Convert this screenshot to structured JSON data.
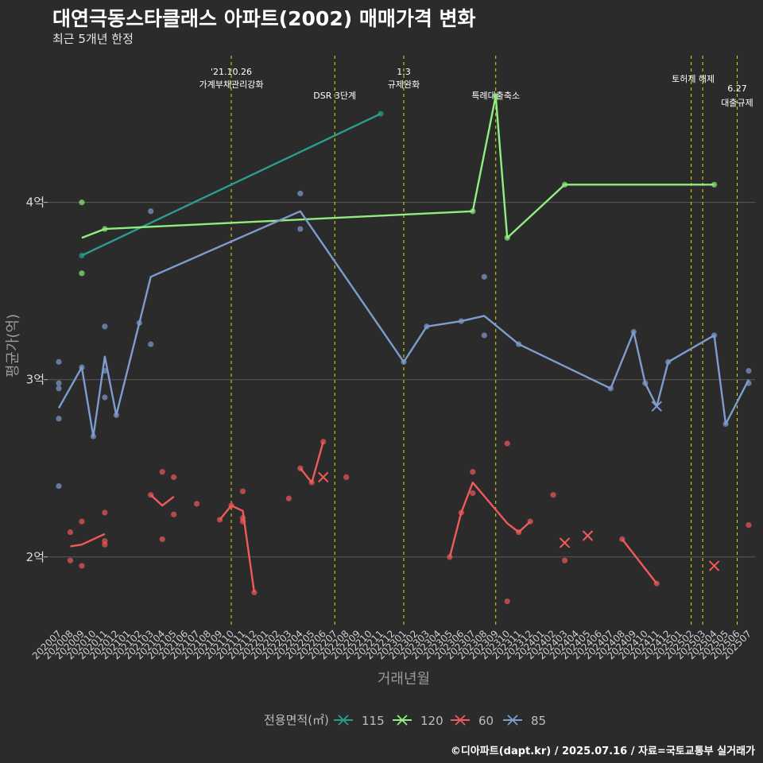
{
  "title": "대연극동스타클래스 아파트(2002) 매매가격 변화",
  "subtitle": "최근 5개년 한정",
  "caption": "©디아파트(dapt.kr) / 2025.07.16 / 자료=국토교통부 실거래가",
  "colors": {
    "background": "#2b2b2b",
    "grid": "#5a5a5a",
    "event_line": "#e0e000",
    "s115": "#2a9d8f",
    "s120": "#90ee7e",
    "s60": "#f05a5a",
    "s85": "#7f9ccf"
  },
  "chart_data": {
    "type": "line",
    "xlabel": "거래년월",
    "ylabel": "평균가(억)",
    "x_categories": [
      "202007",
      "202008",
      "202009",
      "202010",
      "202011",
      "202012",
      "202101",
      "202102",
      "202103",
      "202104",
      "202105",
      "202106",
      "202107",
      "202108",
      "202109",
      "202110",
      "202111",
      "202112",
      "202201",
      "202202",
      "202203",
      "202204",
      "202205",
      "202206",
      "202207",
      "202208",
      "202209",
      "202210",
      "202211",
      "202212",
      "202301",
      "202302",
      "202303",
      "202304",
      "202305",
      "202306",
      "202307",
      "202308",
      "202309",
      "202310",
      "202311",
      "202312",
      "202401",
      "202402",
      "202403",
      "202404",
      "202405",
      "202406",
      "202407",
      "202408",
      "202409",
      "202410",
      "202411",
      "202412",
      "202501",
      "202502",
      "202503",
      "202504",
      "202505",
      "202506",
      "202507"
    ],
    "y_ticks": [
      {
        "value": 2,
        "label": "2억"
      },
      {
        "value": 3,
        "label": "3억"
      },
      {
        "value": 4,
        "label": "4억"
      }
    ],
    "ylim": [
      1.6,
      4.85
    ],
    "grid": true,
    "legend": {
      "title": "전용면적(㎡)",
      "position": "bottom",
      "entries": [
        "115",
        "120",
        "60",
        "85"
      ]
    },
    "events": [
      {
        "x": "202110",
        "labels": [
          "'21.10.26",
          "가계부채관리강화"
        ]
      },
      {
        "x": "202207",
        "labels": [
          "DSR 3단계"
        ]
      },
      {
        "x": "202301",
        "labels": [
          "1.3",
          "규제완화"
        ]
      },
      {
        "x": "202309",
        "labels": [
          "특례대출축소"
        ]
      },
      {
        "x": "202502",
        "labels": [
          ""
        ]
      },
      {
        "x": "202503",
        "labels": [
          "토허제 해제"
        ]
      },
      {
        "x": "202506",
        "labels": [
          "6.27",
          "대출규제"
        ]
      }
    ],
    "series": [
      {
        "name": "115",
        "color_key": "s115",
        "line": [
          [
            "202009",
            3.7
          ],
          [
            "202211",
            4.5
          ]
        ],
        "points": [
          [
            "202009",
            3.7
          ],
          [
            "202211",
            4.5
          ]
        ],
        "crosses": []
      },
      {
        "name": "120",
        "color_key": "s120",
        "line": [
          [
            "202009",
            3.8
          ],
          [
            "202011",
            3.85
          ],
          [
            "202307",
            3.95
          ],
          [
            "202309",
            4.6
          ],
          [
            "202310",
            3.8
          ],
          [
            "202403",
            4.1
          ],
          [
            "202504",
            4.1
          ]
        ],
        "points": [
          [
            "202009",
            4.0
          ],
          [
            "202009",
            3.6
          ],
          [
            "202011",
            3.85
          ],
          [
            "202307",
            3.95
          ],
          [
            "202309",
            4.6
          ],
          [
            "202310",
            3.8
          ],
          [
            "202403",
            4.1
          ],
          [
            "202504",
            4.1
          ]
        ],
        "crosses": []
      },
      {
        "name": "60",
        "color_key": "s60",
        "line_segments": [
          [
            [
              "202008",
              2.06
            ],
            [
              "202009",
              2.07
            ],
            [
              "202011",
              2.13
            ]
          ],
          [
            [
              "202103",
              2.35
            ],
            [
              "202104",
              2.29
            ],
            [
              "202105",
              2.34
            ]
          ],
          [
            [
              "202109",
              2.21
            ],
            [
              "202110",
              2.29
            ],
            [
              "202111",
              2.26
            ],
            [
              "202112",
              1.8
            ]
          ],
          [
            [
              "202204",
              2.5
            ],
            [
              "202205",
              2.42
            ],
            [
              "202206",
              2.65
            ]
          ],
          [
            [
              "202305",
              2.0
            ],
            [
              "202306",
              2.25
            ],
            [
              "202307",
              2.42
            ],
            [
              "202310",
              2.19
            ],
            [
              "202311",
              2.14
            ],
            [
              "202312",
              2.2
            ]
          ],
          [
            [
              "202408",
              2.1
            ],
            [
              "202411",
              1.85
            ]
          ]
        ],
        "points": [
          [
            "202008",
            2.14
          ],
          [
            "202008",
            1.98
          ],
          [
            "202009",
            2.2
          ],
          [
            "202009",
            1.95
          ],
          [
            "202011",
            2.25
          ],
          [
            "202011",
            2.09
          ],
          [
            "202011",
            2.07
          ],
          [
            "202103",
            2.35
          ],
          [
            "202104",
            2.48
          ],
          [
            "202104",
            2.1
          ],
          [
            "202105",
            2.45
          ],
          [
            "202105",
            2.24
          ],
          [
            "202107",
            2.3
          ],
          [
            "202109",
            2.21
          ],
          [
            "202110",
            2.29
          ],
          [
            "202111",
            2.37
          ],
          [
            "202111",
            2.22
          ],
          [
            "202111",
            2.2
          ],
          [
            "202112",
            1.8
          ],
          [
            "202203",
            2.33
          ],
          [
            "202204",
            2.5
          ],
          [
            "202205",
            2.42
          ],
          [
            "202206",
            2.65
          ],
          [
            "202208",
            2.45
          ],
          [
            "202305",
            2.0
          ],
          [
            "202306",
            2.25
          ],
          [
            "202307",
            2.48
          ],
          [
            "202307",
            2.36
          ],
          [
            "202310",
            2.64
          ],
          [
            "202310",
            1.75
          ],
          [
            "202311",
            2.14
          ],
          [
            "202312",
            2.2
          ],
          [
            "202402",
            2.35
          ],
          [
            "202403",
            1.98
          ],
          [
            "202408",
            2.1
          ],
          [
            "202411",
            1.85
          ],
          [
            "202507",
            2.18
          ]
        ],
        "crosses": [
          [
            "202206",
            2.45
          ],
          [
            "202403",
            2.08
          ],
          [
            "202405",
            2.12
          ],
          [
            "202504",
            1.95
          ]
        ]
      },
      {
        "name": "85",
        "color_key": "s85",
        "line": [
          [
            "202007",
            2.84
          ],
          [
            "202009",
            3.07
          ],
          [
            "202010",
            2.68
          ],
          [
            "202011",
            3.13
          ],
          [
            "202012",
            2.8
          ],
          [
            "202102",
            3.32
          ],
          [
            "202103",
            3.58
          ],
          [
            "202204",
            3.95
          ],
          [
            "202301",
            3.1
          ],
          [
            "202303",
            3.3
          ],
          [
            "202306",
            3.33
          ],
          [
            "202308",
            3.36
          ],
          [
            "202311",
            3.2
          ],
          [
            "202407",
            2.95
          ],
          [
            "202409",
            3.27
          ],
          [
            "202410",
            2.98
          ],
          [
            "202411",
            2.85
          ],
          [
            "202412",
            3.1
          ],
          [
            "202504",
            3.25
          ],
          [
            "202505",
            2.75
          ],
          [
            "202507",
            3.0
          ]
        ],
        "points": [
          [
            "202007",
            3.1
          ],
          [
            "202007",
            2.98
          ],
          [
            "202007",
            2.95
          ],
          [
            "202007",
            2.78
          ],
          [
            "202007",
            2.4
          ],
          [
            "202009",
            3.07
          ],
          [
            "202010",
            2.68
          ],
          [
            "202011",
            3.3
          ],
          [
            "202011",
            3.05
          ],
          [
            "202011",
            2.9
          ],
          [
            "202012",
            2.8
          ],
          [
            "202102",
            3.32
          ],
          [
            "202103",
            3.95
          ],
          [
            "202103",
            3.2
          ],
          [
            "202204",
            4.05
          ],
          [
            "202204",
            3.85
          ],
          [
            "202301",
            3.1
          ],
          [
            "202303",
            3.3
          ],
          [
            "202306",
            3.33
          ],
          [
            "202308",
            3.58
          ],
          [
            "202308",
            3.25
          ],
          [
            "202311",
            3.2
          ],
          [
            "202407",
            2.95
          ],
          [
            "202409",
            3.27
          ],
          [
            "202410",
            2.98
          ],
          [
            "202412",
            3.1
          ],
          [
            "202504",
            3.25
          ],
          [
            "202505",
            2.75
          ],
          [
            "202507",
            3.05
          ],
          [
            "202507",
            2.98
          ]
        ],
        "crosses": [
          [
            "202411",
            2.85
          ]
        ]
      }
    ]
  }
}
